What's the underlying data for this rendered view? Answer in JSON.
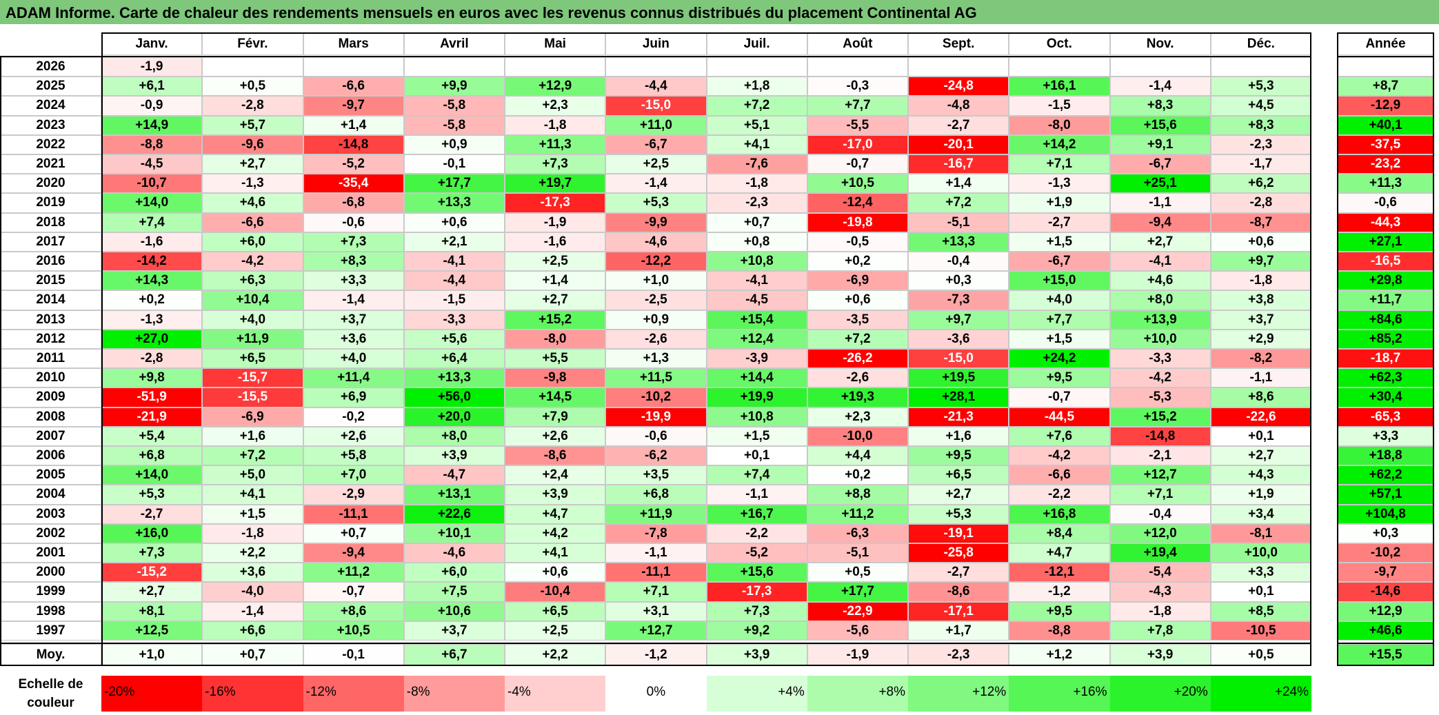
{
  "title": "ADAM Informe. Carte de chaleur des rendements mensuels en euros avec les revenus connus distribués du placement Continental AG",
  "chart_data": {
    "type": "heatmap",
    "title": "ADAM Informe. Carte de chaleur des rendements mensuels en euros avec les revenus connus distribués du placement Continental AG",
    "months": [
      "Janv.",
      "Févr.",
      "Mars",
      "Avril",
      "Mai",
      "Juin",
      "Juil.",
      "Août",
      "Sept.",
      "Oct.",
      "Nov.",
      "Déc."
    ],
    "year_header": "Année",
    "average_label": "Moy.",
    "rows": [
      {
        "year": "2026",
        "values": [
          "-1,9",
          "",
          "",
          "",
          "",
          "",
          "",
          "",
          "",
          "",
          "",
          ""
        ],
        "annual": ""
      },
      {
        "year": "2025",
        "values": [
          "+6,1",
          "+0,5",
          "-6,6",
          "+9,9",
          "+12,9",
          "-4,4",
          "+1,8",
          "-0,3",
          "-24,8",
          "+16,1",
          "-1,4",
          "+5,3"
        ],
        "annual": "+8,7"
      },
      {
        "year": "2024",
        "values": [
          "-0,9",
          "-2,8",
          "-9,7",
          "-5,8",
          "+2,3",
          "-15,0",
          "+7,2",
          "+7,7",
          "-4,8",
          "-1,5",
          "+8,3",
          "+4,5"
        ],
        "annual": "-12,9"
      },
      {
        "year": "2023",
        "values": [
          "+14,9",
          "+5,7",
          "+1,4",
          "-5,8",
          "-1,8",
          "+11,0",
          "+5,1",
          "-5,5",
          "-2,7",
          "-8,0",
          "+15,6",
          "+8,3"
        ],
        "annual": "+40,1"
      },
      {
        "year": "2022",
        "values": [
          "-8,8",
          "-9,6",
          "-14,8",
          "+0,9",
          "+11,3",
          "-6,7",
          "+4,1",
          "-17,0",
          "-20,1",
          "+14,2",
          "+9,1",
          "-2,3"
        ],
        "annual": "-37,5"
      },
      {
        "year": "2021",
        "values": [
          "-4,5",
          "+2,7",
          "-5,2",
          "-0,1",
          "+7,3",
          "+2,5",
          "-7,6",
          "-0,7",
          "-16,7",
          "+7,1",
          "-6,7",
          "-1,7"
        ],
        "annual": "-23,2"
      },
      {
        "year": "2020",
        "values": [
          "-10,7",
          "-1,3",
          "-35,4",
          "+17,7",
          "+19,7",
          "-1,4",
          "-1,8",
          "+10,5",
          "+1,4",
          "-1,3",
          "+25,1",
          "+6,2"
        ],
        "annual": "+11,3"
      },
      {
        "year": "2019",
        "values": [
          "+14,0",
          "+4,6",
          "-6,8",
          "+13,3",
          "-17,3",
          "+5,3",
          "-2,3",
          "-12,4",
          "+7,2",
          "+1,9",
          "-1,1",
          "-2,8"
        ],
        "annual": "-0,6"
      },
      {
        "year": "2018",
        "values": [
          "+7,4",
          "-6,6",
          "-0,6",
          "+0,6",
          "-1,9",
          "-9,9",
          "+0,7",
          "-19,8",
          "-5,1",
          "-2,7",
          "-9,4",
          "-8,7"
        ],
        "annual": "-44,3"
      },
      {
        "year": "2017",
        "values": [
          "-1,6",
          "+6,0",
          "+7,3",
          "+2,1",
          "-1,6",
          "-4,6",
          "+0,8",
          "-0,5",
          "+13,3",
          "+1,5",
          "+2,7",
          "+0,6"
        ],
        "annual": "+27,1"
      },
      {
        "year": "2016",
        "values": [
          "-14,2",
          "-4,2",
          "+8,3",
          "-4,1",
          "+2,5",
          "-12,2",
          "+10,8",
          "+0,2",
          "-0,4",
          "-6,7",
          "-4,1",
          "+9,7"
        ],
        "annual": "-16,5"
      },
      {
        "year": "2015",
        "values": [
          "+14,3",
          "+6,3",
          "+3,3",
          "-4,4",
          "+1,4",
          "+1,0",
          "-4,1",
          "-6,9",
          "+0,3",
          "+15,0",
          "+4,6",
          "-1,8"
        ],
        "annual": "+29,8"
      },
      {
        "year": "2014",
        "values": [
          "+0,2",
          "+10,4",
          "-1,4",
          "-1,5",
          "+2,7",
          "-2,5",
          "-4,5",
          "+0,6",
          "-7,3",
          "+4,0",
          "+8,0",
          "+3,8"
        ],
        "annual": "+11,7"
      },
      {
        "year": "2013",
        "values": [
          "-1,3",
          "+4,0",
          "+3,7",
          "-3,3",
          "+15,2",
          "+0,9",
          "+15,4",
          "-3,5",
          "+9,7",
          "+7,7",
          "+13,9",
          "+3,7"
        ],
        "annual": "+84,6"
      },
      {
        "year": "2012",
        "values": [
          "+27,0",
          "+11,9",
          "+3,6",
          "+5,6",
          "-8,0",
          "-2,6",
          "+12,4",
          "+7,2",
          "-3,6",
          "+1,5",
          "+10,0",
          "+2,9"
        ],
        "annual": "+85,2"
      },
      {
        "year": "2011",
        "values": [
          "-2,8",
          "+6,5",
          "+4,0",
          "+6,4",
          "+5,5",
          "+1,3",
          "-3,9",
          "-26,2",
          "-15,0",
          "+24,2",
          "-3,3",
          "-8,2"
        ],
        "annual": "-18,7"
      },
      {
        "year": "2010",
        "values": [
          "+9,8",
          "-15,7",
          "+11,4",
          "+13,3",
          "-9,8",
          "+11,5",
          "+14,4",
          "-2,6",
          "+19,5",
          "+9,5",
          "-4,2",
          "-1,1"
        ],
        "annual": "+62,3"
      },
      {
        "year": "2009",
        "values": [
          "-51,9",
          "-15,5",
          "+6,9",
          "+56,0",
          "+14,5",
          "-10,2",
          "+19,9",
          "+19,3",
          "+28,1",
          "-0,7",
          "-5,3",
          "+8,6"
        ],
        "annual": "+30,4"
      },
      {
        "year": "2008",
        "values": [
          "-21,9",
          "-6,9",
          "-0,2",
          "+20,0",
          "+7,9",
          "-19,9",
          "+10,8",
          "+2,3",
          "-21,3",
          "-44,5",
          "+15,2",
          "-22,6"
        ],
        "annual": "-65,3"
      },
      {
        "year": "2007",
        "values": [
          "+5,4",
          "+1,6",
          "+2,6",
          "+8,0",
          "+2,6",
          "-0,6",
          "+1,5",
          "-10,0",
          "+1,6",
          "+7,6",
          "-14,8",
          "+0,1"
        ],
        "annual": "+3,3"
      },
      {
        "year": "2006",
        "values": [
          "+6,8",
          "+7,2",
          "+5,8",
          "+3,9",
          "-8,6",
          "-6,2",
          "+0,1",
          "+4,4",
          "+9,5",
          "-4,2",
          "-2,1",
          "+2,7"
        ],
        "annual": "+18,8"
      },
      {
        "year": "2005",
        "values": [
          "+14,0",
          "+5,0",
          "+7,0",
          "-4,7",
          "+2,4",
          "+3,5",
          "+7,4",
          "+0,2",
          "+6,5",
          "-6,6",
          "+12,7",
          "+4,3"
        ],
        "annual": "+62,2"
      },
      {
        "year": "2004",
        "values": [
          "+5,3",
          "+4,1",
          "-2,9",
          "+13,1",
          "+3,9",
          "+6,8",
          "-1,1",
          "+8,8",
          "+2,7",
          "-2,2",
          "+7,1",
          "+1,9"
        ],
        "annual": "+57,1"
      },
      {
        "year": "2003",
        "values": [
          "-2,7",
          "+1,5",
          "-11,1",
          "+22,6",
          "+4,7",
          "+11,9",
          "+16,7",
          "+11,2",
          "+5,3",
          "+16,8",
          "-0,4",
          "+3,4"
        ],
        "annual": "+104,8"
      },
      {
        "year": "2002",
        "values": [
          "+16,0",
          "-1,8",
          "+0,7",
          "+10,1",
          "+4,2",
          "-7,8",
          "-2,2",
          "-6,3",
          "-19,1",
          "+8,4",
          "+12,0",
          "-8,1"
        ],
        "annual": "+0,3"
      },
      {
        "year": "2001",
        "values": [
          "+7,3",
          "+2,2",
          "-9,4",
          "-4,6",
          "+4,1",
          "-1,1",
          "-5,2",
          "-5,1",
          "-25,8",
          "+4,7",
          "+19,4",
          "+10,0"
        ],
        "annual": "-10,2"
      },
      {
        "year": "2000",
        "values": [
          "-15,2",
          "+3,6",
          "+11,2",
          "+6,0",
          "+0,6",
          "-11,1",
          "+15,6",
          "+0,5",
          "-2,7",
          "-12,1",
          "-5,4",
          "+3,3"
        ],
        "annual": "-9,7"
      },
      {
        "year": "1999",
        "values": [
          "+2,7",
          "-4,0",
          "-0,7",
          "+7,5",
          "-10,4",
          "+7,1",
          "-17,3",
          "+17,7",
          "-8,6",
          "-1,2",
          "-4,3",
          "+0,1"
        ],
        "annual": "-14,6"
      },
      {
        "year": "1998",
        "values": [
          "+8,1",
          "-1,4",
          "+8,6",
          "+10,6",
          "+6,5",
          "+3,1",
          "+7,3",
          "-22,9",
          "-17,1",
          "+9,5",
          "-1,8",
          "+8,5"
        ],
        "annual": "+12,9"
      },
      {
        "year": "1997",
        "values": [
          "+12,5",
          "+6,6",
          "+10,5",
          "+3,7",
          "+2,5",
          "+12,7",
          "+9,2",
          "-5,6",
          "+1,7",
          "-8,8",
          "+7,8",
          "-10,5"
        ],
        "annual": "+46,6"
      }
    ],
    "averages": [
      "+1,0",
      "+0,7",
      "-0,1",
      "+6,7",
      "+2,2",
      "-1,2",
      "+3,9",
      "-1,9",
      "-2,3",
      "+1,2",
      "+3,9",
      "+0,5"
    ],
    "average_annual": "+15,5",
    "scale_label": "Echelle de couleur",
    "scale": [
      "-20%",
      "-16%",
      "-12%",
      "-8%",
      "-4%",
      "0%",
      "+4%",
      "+8%",
      "+12%",
      "+16%",
      "+20%",
      "+24%"
    ]
  }
}
